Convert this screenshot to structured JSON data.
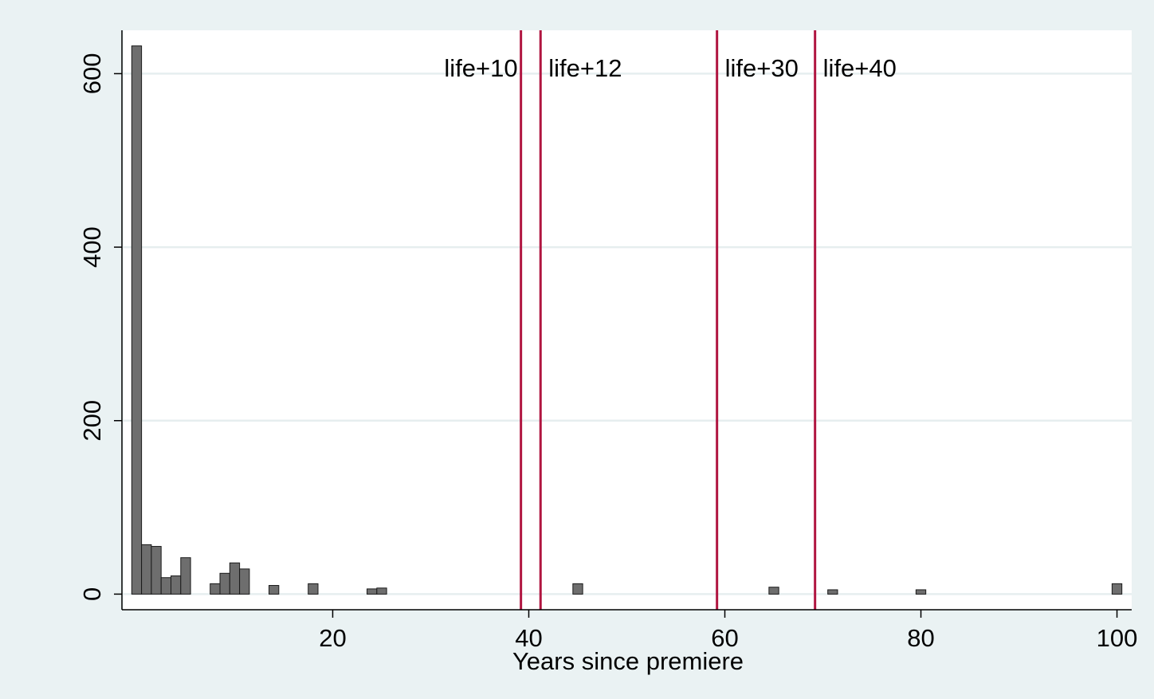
{
  "chart_data": {
    "type": "bar",
    "title": "",
    "xlabel": "Years since premiere",
    "ylabel": "",
    "xlim": [
      -1.5,
      101.5
    ],
    "ylim": [
      -18,
      650
    ],
    "x_ticks": [
      20,
      40,
      60,
      80,
      100
    ],
    "y_ticks": [
      0,
      200,
      400,
      600
    ],
    "grid": "horizontal",
    "colors": {
      "outer_background": "#eaf2f3",
      "plot_background": "#ffffff",
      "bar_fill": "#6e6e6e",
      "bar_stroke": "#1a1a1a",
      "gridline": "#e6eeef",
      "reference_line": "#b01540"
    },
    "bars": [
      {
        "x": 0,
        "y": 632
      },
      {
        "x": 1,
        "y": 57
      },
      {
        "x": 2,
        "y": 55
      },
      {
        "x": 3,
        "y": 19
      },
      {
        "x": 4,
        "y": 21
      },
      {
        "x": 5,
        "y": 42
      },
      {
        "x": 8,
        "y": 12
      },
      {
        "x": 9,
        "y": 24
      },
      {
        "x": 10,
        "y": 36
      },
      {
        "x": 11,
        "y": 29
      },
      {
        "x": 14,
        "y": 10
      },
      {
        "x": 18,
        "y": 12
      },
      {
        "x": 24,
        "y": 6
      },
      {
        "x": 25,
        "y": 7
      },
      {
        "x": 45,
        "y": 12
      },
      {
        "x": 65,
        "y": 8
      },
      {
        "x": 71,
        "y": 5
      },
      {
        "x": 80,
        "y": 5
      },
      {
        "x": 100,
        "y": 12
      }
    ],
    "reference_lines": [
      {
        "x": 39.2,
        "label": "life+10",
        "label_side": "left"
      },
      {
        "x": 41.2,
        "label": "life+12",
        "label_side": "right"
      },
      {
        "x": 59.2,
        "label": "life+30",
        "label_side": "right"
      },
      {
        "x": 69.2,
        "label": "life+40",
        "label_side": "right"
      }
    ]
  }
}
